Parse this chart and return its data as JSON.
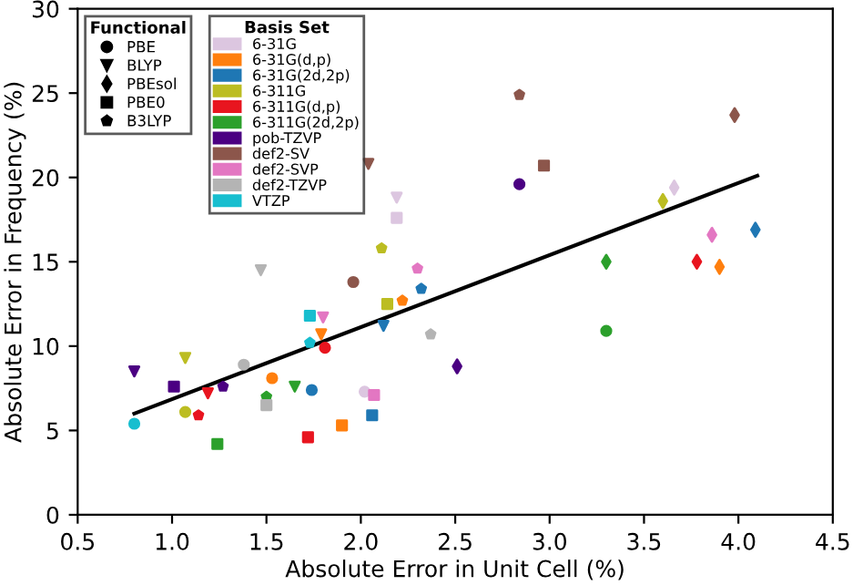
{
  "chart_data": {
    "type": "scatter",
    "xlabel": "Absolute Error in Unit Cell (%)",
    "ylabel": "Absolute Error in Frequency (%)",
    "legend_title": [
      "Functional",
      "Basis Set"
    ],
    "legend": "top left",
    "xlim": [
      0.5,
      4.5
    ],
    "ylim": [
      0,
      30
    ],
    "xticks": [
      0.5,
      {
        "value": 1,
        "label": "1.0"
      },
      1.5,
      {
        "value": 2,
        "label": "2.0"
      },
      2.5,
      {
        "value": 3,
        "label": "3.0"
      },
      3.5,
      {
        "value": 4,
        "label": "4.0"
      },
      4.5
    ],
    "yticks": [
      0,
      5,
      10,
      15,
      20,
      25,
      30
    ],
    "series": [
      {
        "name": "PBE",
        "color": "#000000",
        "marker": "circle"
      },
      {
        "name": "BLYP",
        "color": "#000000",
        "marker": "triangle"
      },
      {
        "name": "PBEsol",
        "color": "#000000",
        "marker": "diamond"
      },
      {
        "name": "PBE0",
        "color": "#000000",
        "marker": "square"
      },
      {
        "name": "B3LYP",
        "color": "#000000",
        "marker": "pentagon"
      },
      {
        "name": "6-31G",
        "color": "#dcc6e0",
        "x": [
          2.19,
          2.19,
          3.66,
          2.02
        ],
        "values": [
          18.8,
          17.6,
          19.4,
          7.3
        ],
        "marker": [
          "triangle",
          "square",
          "diamond",
          "circle"
        ]
      },
      {
        "name": "6-31G(d,p)",
        "color": "#ff7f0e",
        "x": [
          2.22,
          1.79,
          1.53,
          1.9,
          3.9
        ],
        "values": [
          12.7,
          10.7,
          8.1,
          5.3,
          14.7
        ],
        "marker": [
          "pentagon",
          "triangle",
          "circle",
          "square",
          "diamond"
        ]
      },
      {
        "name": "6-31G(2d,2p)",
        "color": "#1f77b4",
        "x": [
          2.32,
          2.12,
          1.74,
          2.06,
          4.09
        ],
        "values": [
          13.4,
          11.2,
          7.4,
          5.9,
          16.9
        ],
        "marker": [
          "pentagon",
          "triangle",
          "circle",
          "square",
          "diamond"
        ]
      },
      {
        "name": "6-311G",
        "color": "#bcbd22",
        "x": [
          2.11,
          1.07,
          2.14,
          1.07,
          3.6
        ],
        "values": [
          15.8,
          9.3,
          12.5,
          6.1,
          18.6
        ],
        "marker": [
          "pentagon",
          "triangle",
          "square",
          "circle",
          "diamond"
        ]
      },
      {
        "name": "6-311G(d,p)",
        "color": "#e8151f",
        "x": [
          1.81,
          1.19,
          1.14,
          1.72,
          3.78
        ],
        "values": [
          9.9,
          7.2,
          5.9,
          4.6,
          15.0
        ],
        "marker": [
          "circle",
          "triangle",
          "pentagon",
          "square",
          "diamond"
        ]
      },
      {
        "name": "6-311G(2d,2p)",
        "color": "#2ca02c",
        "x": [
          1.65,
          1.5,
          1.24,
          3.3,
          3.3
        ],
        "values": [
          7.6,
          7.0,
          4.2,
          15.0,
          10.9
        ],
        "marker": [
          "triangle",
          "pentagon",
          "square",
          "diamond",
          "circle"
        ]
      },
      {
        "name": "pob-TZVP",
        "color": "#4b0082",
        "x": [
          0.8,
          2.51,
          1.01,
          1.27,
          2.84
        ],
        "values": [
          8.5,
          8.8,
          7.6,
          7.6,
          19.6
        ],
        "marker": [
          "triangle",
          "diamond",
          "square",
          "pentagon",
          "circle"
        ]
      },
      {
        "name": "def2-SV",
        "color": "#8c564b",
        "x": [
          2.04,
          1.96,
          2.84,
          3.98,
          2.97
        ],
        "values": [
          20.8,
          13.8,
          24.9,
          23.7,
          20.7
        ],
        "marker": [
          "triangle",
          "circle",
          "pentagon",
          "diamond",
          "square"
        ]
      },
      {
        "name": "def2-SVP",
        "color": "#e377c2",
        "x": [
          2.3,
          1.8,
          2.07,
          3.86
        ],
        "values": [
          14.6,
          11.7,
          7.1,
          16.6
        ],
        "marker": [
          "pentagon",
          "triangle",
          "square",
          "diamond"
        ]
      },
      {
        "name": "def2-TZVP",
        "color": "#b4b4b4",
        "x": [
          1.47,
          2.37,
          1.38,
          1.5
        ],
        "values": [
          14.5,
          10.7,
          8.9,
          6.5
        ],
        "marker": [
          "triangle",
          "pentagon",
          "circle",
          "square"
        ]
      },
      {
        "name": "VTZP",
        "color": "#17becf",
        "x": [
          1.73,
          1.73,
          0.8
        ],
        "values": [
          11.8,
          10.2,
          5.4
        ],
        "marker": [
          "square",
          "pentagon",
          "circle"
        ]
      },
      {
        "type": "line",
        "color": "#000000",
        "x": [
          0.8,
          4.1
        ],
        "values": [
          6.0,
          20.1
        ],
        "line_style": "solid"
      }
    ]
  }
}
